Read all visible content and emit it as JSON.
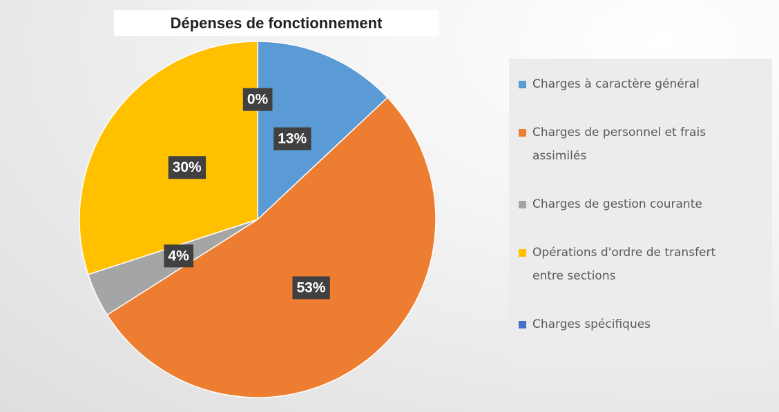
{
  "chart_data": {
    "type": "pie",
    "title": "Dépenses de fonctionnement",
    "categories": [
      "Charges à caractère général",
      "Charges de personnel et frais assimilés",
      "Charges de gestion courante",
      "Opérations d'ordre de transfert entre sections",
      "Charges spécifiques"
    ],
    "values": [
      13,
      53,
      4,
      30,
      0
    ],
    "value_labels": [
      "13%",
      "53%",
      "4%",
      "30%",
      "0%"
    ],
    "colors": [
      "#5b9bd5",
      "#ed7d31",
      "#a5a5a5",
      "#ffc000",
      "#4472c4"
    ],
    "legend": "right"
  }
}
